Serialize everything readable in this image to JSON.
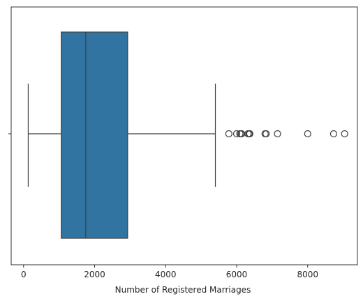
{
  "chart_data": {
    "type": "box",
    "orientation": "horizontal",
    "xlabel": "Number of Registered Marriages",
    "ylabel": "",
    "xlim": [
      -350,
      9400
    ],
    "xticks": [
      0,
      2000,
      4000,
      6000,
      8000
    ],
    "xtick_labels": [
      "0",
      "2000",
      "4000",
      "6000",
      "8000"
    ],
    "grid": false,
    "box": {
      "whisker_low": 130,
      "q1": 1060,
      "median": 1750,
      "q3": 2930,
      "whisker_high": 5400
    },
    "outliers": [
      5780,
      6000,
      6090,
      6120,
      6140,
      6320,
      6350,
      6370,
      6800,
      6830,
      7150,
      8000,
      8730,
      9040
    ],
    "colors": {
      "box_fill": "#3274a1",
      "line": "#3f3f3f",
      "spine": "#000000"
    }
  }
}
